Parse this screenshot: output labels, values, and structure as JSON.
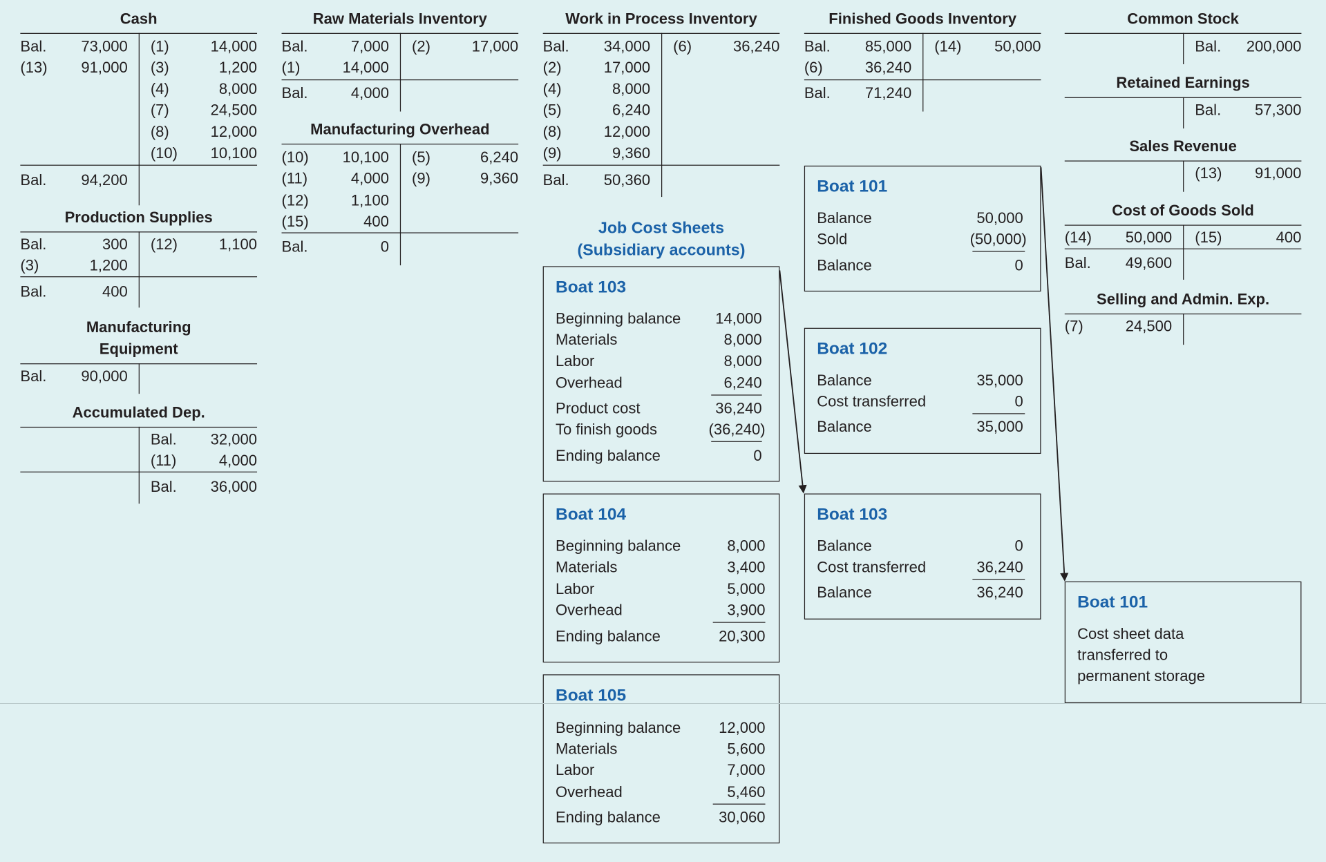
{
  "ledger": {
    "cash": {
      "title": "Cash",
      "dr": [
        [
          "Bal.",
          "73,000"
        ],
        [
          "(13)",
          "91,000"
        ]
      ],
      "cr": [
        [
          "(1)",
          "14,000"
        ],
        [
          "(3)",
          "1,200"
        ],
        [
          "(4)",
          "8,000"
        ],
        [
          "(7)",
          "24,500"
        ],
        [
          "(8)",
          "12,000"
        ],
        [
          "(10)",
          "10,100"
        ]
      ],
      "bal": [
        "Bal.",
        "94,200"
      ]
    },
    "production_supplies": {
      "title": "Production Supplies",
      "dr": [
        [
          "Bal.",
          "300"
        ],
        [
          "(3)",
          "1,200"
        ]
      ],
      "cr": [
        [
          "(12)",
          "1,100"
        ]
      ],
      "bal": [
        "Bal.",
        "400"
      ]
    },
    "manufacturing_equipment": {
      "title_line1": "Manufacturing",
      "title_line2": "Equipment",
      "bal": [
        "Bal.",
        "90,000"
      ]
    },
    "accumulated_dep": {
      "title": "Accumulated Dep.",
      "cr": [
        [
          "Bal.",
          "32,000"
        ],
        [
          "(11)",
          "4,000"
        ]
      ],
      "bal": [
        "Bal.",
        "36,000"
      ]
    },
    "raw_materials": {
      "title": "Raw Materials Inventory",
      "dr": [
        [
          "Bal.",
          "7,000"
        ],
        [
          "(1)",
          "14,000"
        ]
      ],
      "cr": [
        [
          "(2)",
          "17,000"
        ]
      ],
      "bal": [
        "Bal.",
        "4,000"
      ]
    },
    "manufacturing_overhead": {
      "title": "Manufacturing Overhead",
      "dr": [
        [
          "(10)",
          "10,100"
        ],
        [
          "(11)",
          "4,000"
        ],
        [
          "(12)",
          "1,100"
        ],
        [
          "(15)",
          "400"
        ]
      ],
      "cr": [
        [
          "(5)",
          "6,240"
        ],
        [
          "(9)",
          "9,360"
        ]
      ],
      "bal": [
        "Bal.",
        "0"
      ]
    },
    "wip": {
      "title": "Work in Process Inventory",
      "dr": [
        [
          "Bal.",
          "34,000"
        ],
        [
          "(2)",
          "17,000"
        ],
        [
          "(4)",
          "8,000"
        ],
        [
          "(5)",
          "6,240"
        ],
        [
          "(8)",
          "12,000"
        ],
        [
          "(9)",
          "9,360"
        ]
      ],
      "cr": [
        [
          "(6)",
          "36,240"
        ]
      ],
      "bal": [
        "Bal.",
        "50,360"
      ]
    },
    "finished_goods": {
      "title": "Finished Goods Inventory",
      "dr": [
        [
          "Bal.",
          "85,000"
        ],
        [
          "(6)",
          "36,240"
        ]
      ],
      "cr": [
        [
          "(14)",
          "50,000"
        ]
      ],
      "bal": [
        "Bal.",
        "71,240"
      ]
    },
    "common_stock": {
      "title": "Common Stock",
      "cr": [
        [
          "Bal.",
          "200,000"
        ]
      ]
    },
    "retained_earnings": {
      "title": "Retained Earnings",
      "cr": [
        [
          "Bal.",
          "57,300"
        ]
      ]
    },
    "sales_revenue": {
      "title": "Sales Revenue",
      "cr": [
        [
          "(13)",
          "91,000"
        ]
      ]
    },
    "cogs": {
      "title": "Cost of Goods Sold",
      "dr": [
        [
          "(14)",
          "50,000"
        ]
      ],
      "cr": [
        [
          "(15)",
          "400"
        ]
      ],
      "bal": [
        "Bal.",
        "49,600"
      ]
    },
    "selling_admin": {
      "title": "Selling and Admin. Exp.",
      "dr": [
        [
          "(7)",
          "24,500"
        ]
      ]
    }
  },
  "job_cost_sheets": {
    "title_line1": "Job Cost Sheets",
    "title_line2": "(Subsidiary accounts)",
    "boat103_wip": {
      "title": "Boat 103",
      "rows": [
        [
          "Beginning balance",
          "14,000"
        ],
        [
          "Materials",
          "8,000"
        ],
        [
          "Labor",
          "8,000"
        ],
        [
          "Overhead",
          "6,240"
        ],
        [
          "Product cost",
          "36,240"
        ],
        [
          "To finish goods",
          "(36,240)"
        ],
        [
          "Ending balance",
          "0"
        ]
      ]
    },
    "boat104": {
      "title": "Boat 104",
      "rows": [
        [
          "Beginning balance",
          "8,000"
        ],
        [
          "Materials",
          "3,400"
        ],
        [
          "Labor",
          "5,000"
        ],
        [
          "Overhead",
          "3,900"
        ],
        [
          "Ending balance",
          "20,300"
        ]
      ]
    },
    "boat105": {
      "title": "Boat 105",
      "rows": [
        [
          "Beginning balance",
          "12,000"
        ],
        [
          "Materials",
          "5,600"
        ],
        [
          "Labor",
          "7,000"
        ],
        [
          "Overhead",
          "5,460"
        ],
        [
          "Ending balance",
          "30,060"
        ]
      ]
    },
    "boat101_fg": {
      "title": "Boat 101",
      "rows": [
        [
          "Balance",
          "50,000"
        ],
        [
          "Sold",
          "(50,000)"
        ],
        [
          "Balance",
          "0"
        ]
      ]
    },
    "boat102_fg": {
      "title": "Boat 102",
      "rows": [
        [
          "Balance",
          "35,000"
        ],
        [
          "Cost transferred",
          "0"
        ],
        [
          "Balance",
          "35,000"
        ]
      ]
    },
    "boat103_fg": {
      "title": "Boat 103",
      "rows": [
        [
          "Balance",
          "0"
        ],
        [
          "Cost transferred",
          "36,240"
        ],
        [
          "Balance",
          "36,240"
        ]
      ]
    },
    "boat101_storage": {
      "title": "Boat 101",
      "lines": [
        "Cost sheet data",
        "transferred to",
        "permanent storage"
      ]
    }
  },
  "colors": {
    "background": "#e0f1f2",
    "accent": "#1b62a8",
    "ink": "#231f20"
  }
}
